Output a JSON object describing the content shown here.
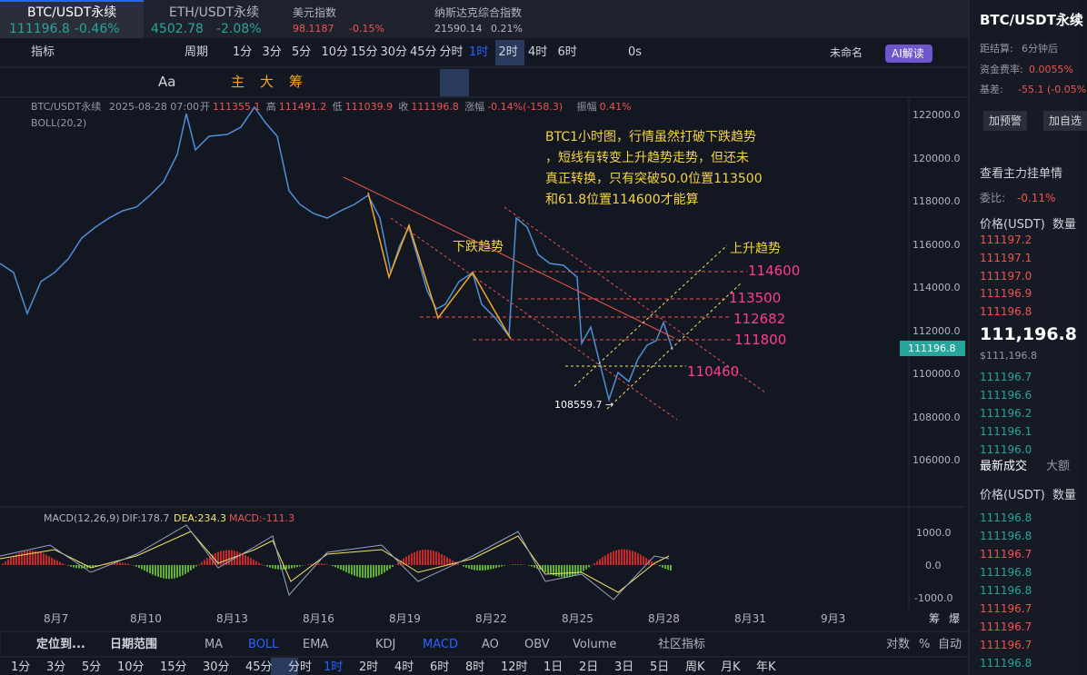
{
  "tabs": [
    {
      "name": "BTC/USDT永续",
      "price": "111196.8",
      "change": "-0.46%"
    },
    {
      "name": "ETH/USDT永续",
      "price": "4502.78",
      "change": "-2.08%"
    },
    {
      "name": "美元指数",
      "price": "98.1187",
      "change": "-0.15%"
    },
    {
      "name": "纳斯达克综合指数",
      "price": "21590.14",
      "change": "0.21%"
    }
  ],
  "toolbar": {
    "indicator": "指标",
    "period": "周期",
    "intervals": [
      "1分",
      "3分",
      "5分",
      "10分",
      "15分",
      "30分",
      "45分",
      "分时",
      "1时",
      "2时",
      "4时",
      "6时"
    ],
    "timer": "0s",
    "layout": "未命名",
    "ai": "AI解读"
  },
  "tools": [
    "Aa",
    "主",
    "大",
    "筹"
  ],
  "info": {
    "symbol": "BTC/USDT永续",
    "time": "2025-08-28 07:00",
    "fields": [
      [
        "开",
        "111355.1"
      ],
      [
        "高",
        "111491.2"
      ],
      [
        "低",
        "111039.9"
      ],
      [
        "收",
        "111196.8"
      ],
      [
        "涨幅",
        "-0.14%(-158.3)"
      ],
      [
        "振幅",
        "0.41%"
      ]
    ],
    "boll": "BOLL(20,2)"
  },
  "annotation": [
    "BTC1小时图，行情虽然打破下跌趋势",
    "，短线有转变上升趋势走势，但还未",
    "真正转换，只有突破50.0位置113500",
    "和61.8位置114600才能算"
  ],
  "labels": {
    "down": "下跌趋势",
    "up": "上升趋势",
    "low": "108559.7 →"
  },
  "levels": [
    "114600",
    "113500",
    "112682",
    "111800",
    "110460"
  ],
  "price_axis": [
    "122000.0",
    "120000.0",
    "118000.0",
    "116000.0",
    "114000.0",
    "112000.0",
    "110000.0",
    "108000.0",
    "106000.0"
  ],
  "last_price": "111196.8",
  "dates": [
    "8月7",
    "8月10",
    "8月13",
    "8月16",
    "8月19",
    "8月22",
    "8月25",
    "8月28",
    "8月31",
    "9月3"
  ],
  "date_icons": [
    "筹",
    "爆"
  ],
  "macd": {
    "name": "MACD(12,26,9)",
    "dif": "DIF:178.7",
    "dea": "DEA:234.3",
    "macd": "MACD:-111.3",
    "axis": [
      "1000.0",
      "0.0",
      "-1000.0"
    ]
  },
  "bottom": {
    "locate": "定位到...",
    "range": "日期范围",
    "indicators": [
      "MA",
      "BOLL",
      "EMA",
      "KDJ",
      "MACD",
      "AO",
      "OBV",
      "Volume"
    ],
    "community": "社区指标",
    "right": [
      "对数",
      "%",
      "自动"
    ]
  },
  "periods": [
    "1分",
    "3分",
    "5分",
    "10分",
    "15分",
    "30分",
    "45分",
    "分时",
    "1时",
    "2时",
    "4时",
    "6时",
    "8时",
    "12时",
    "1日",
    "2日",
    "3日",
    "5日",
    "周K",
    "月K",
    "年K"
  ],
  "panel": {
    "title": "BTC/USDT永续",
    "settle": [
      "距结算:",
      "6分钟后"
    ],
    "funding": [
      "资金费率:",
      "0.0055%"
    ],
    "basis": [
      "基差:",
      "-55.1 (-0.05%"
    ],
    "buttons": [
      "加预警",
      "加自选"
    ],
    "depth": "查看主力挂单情",
    "ratio": [
      "委比:",
      "-0.11%"
    ],
    "head": [
      "价格(USDT)",
      "数量"
    ],
    "asks": [
      "111197.2",
      "111197.1",
      "111197.0",
      "111196.9",
      "111196.8"
    ],
    "mid": "111,196.8",
    "mid_usd": "$111,196.8",
    "bids": [
      "111196.7",
      "111196.6",
      "111196.2",
      "111196.1",
      "111196.0"
    ],
    "trade_tabs": [
      "最新成交",
      "大额"
    ],
    "trade_head": [
      "价格(USDT)",
      "数量"
    ],
    "trades": [
      {
        "price": "111196.8",
        "color": "#26a69a"
      },
      {
        "price": "111196.8",
        "color": "#26a69a"
      },
      {
        "price": "111196.7",
        "color": "#ef5350"
      },
      {
        "price": "111196.8",
        "color": "#26a69a"
      },
      {
        "price": "111196.8",
        "color": "#26a69a"
      },
      {
        "price": "111196.7",
        "color": "#ef5350"
      },
      {
        "price": "111196.7",
        "color": "#ef5350"
      },
      {
        "price": "111196.7",
        "color": "#ef5350"
      },
      {
        "price": "111196.8",
        "color": "#26a69a"
      }
    ]
  }
}
